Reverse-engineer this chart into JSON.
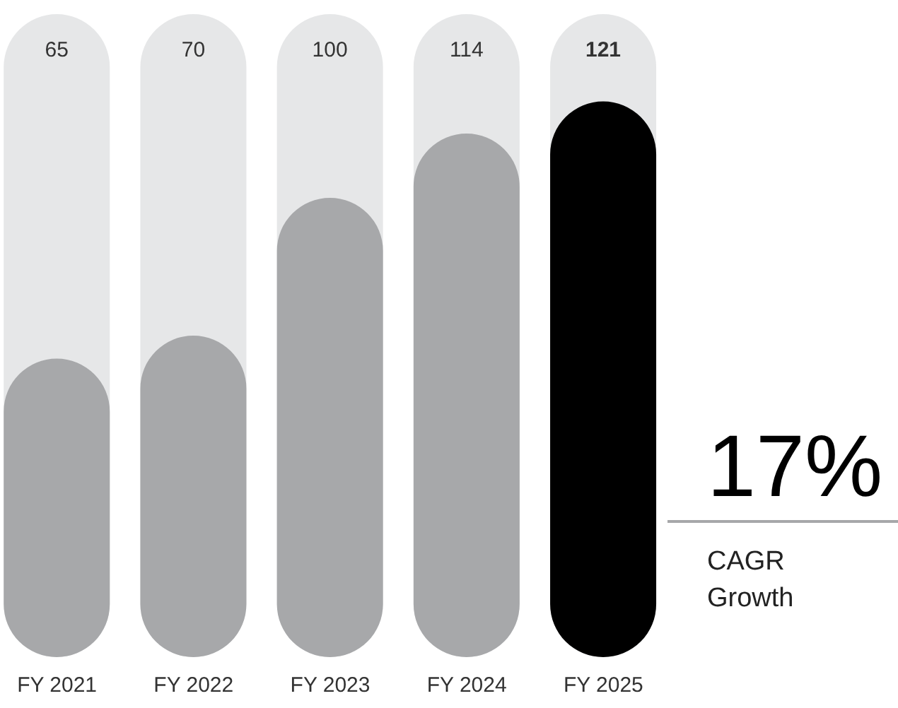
{
  "chart_data": {
    "type": "bar",
    "categories": [
      "FY 2021",
      "FY 2022",
      "FY 2023",
      "FY 2024",
      "FY 2025"
    ],
    "values": [
      65,
      70,
      100,
      114,
      121
    ],
    "colors": [
      "#a7a8aa",
      "#a7a8aa",
      "#a7a8aa",
      "#a7a8aa",
      "#000000"
    ],
    "data_labels": true,
    "annotations": [
      "17%",
      "CAGR Growth"
    ]
  }
}
